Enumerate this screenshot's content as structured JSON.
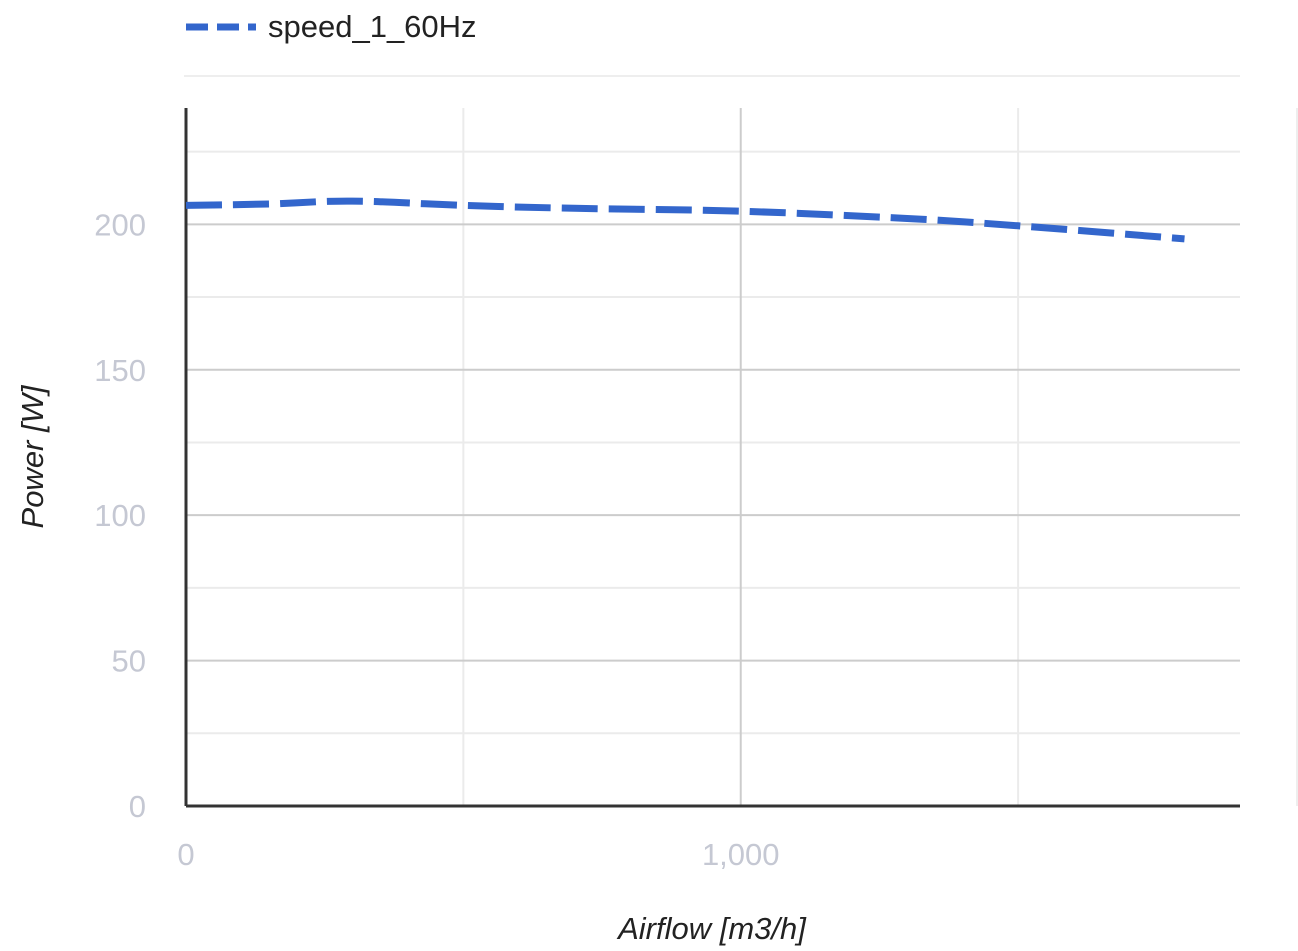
{
  "chart_data": {
    "type": "line",
    "xlabel": "Airflow [m3/h]",
    "ylabel": "Power [W]",
    "xlim": [
      0,
      1900
    ],
    "ylim": [
      0,
      240
    ],
    "x_ticks": [
      0,
      1000
    ],
    "x_tick_labels": [
      "0",
      "1,000"
    ],
    "y_ticks": [
      0,
      50,
      100,
      150,
      200
    ],
    "y_tick_labels": [
      "0",
      "50",
      "100",
      "150",
      "200"
    ],
    "x_minor_ticks": [
      500,
      1500
    ],
    "y_minor_ticks": [
      25,
      75,
      125,
      175,
      225
    ],
    "grid": true,
    "legend_position": "top",
    "series": [
      {
        "name": "speed_1_60Hz",
        "color": "#3366cc",
        "line_style": "dashed",
        "x": [
          0,
          150,
          300,
          500,
          700,
          1000,
          1300,
          1500,
          1800
        ],
        "y": [
          206.5,
          207,
          208,
          206.5,
          205.5,
          204.5,
          202,
          199.5,
          195
        ]
      }
    ]
  }
}
